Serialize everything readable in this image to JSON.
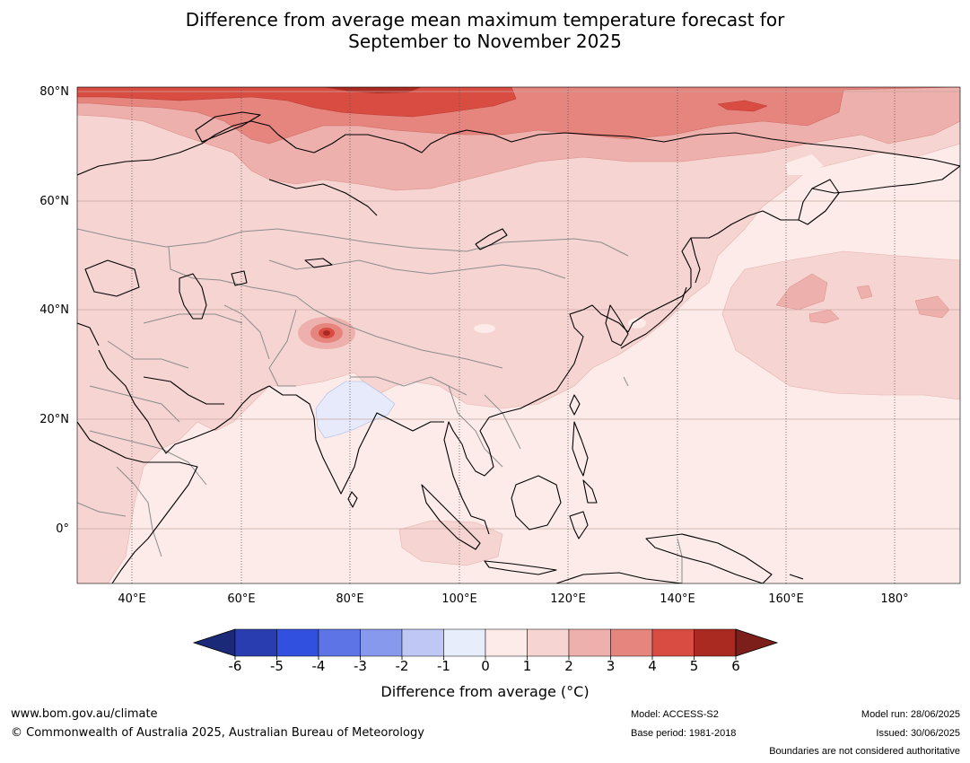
{
  "title_line1": "Difference from average mean maximum temperature forecast for",
  "title_line2": "September to November 2025",
  "map": {
    "lat_labels": [
      "80°N",
      "60°N",
      "40°N",
      "20°N",
      "0°"
    ],
    "lon_labels": [
      "40°E",
      "60°E",
      "80°E",
      "100°E",
      "120°E",
      "140°E",
      "160°E",
      "180°"
    ],
    "lat_range": [
      -10,
      81
    ],
    "lon_range": [
      30,
      192
    ]
  },
  "legend": {
    "ticks": [
      "-6",
      "-5",
      "-4",
      "-3",
      "-2",
      "-1",
      "0",
      "1",
      "2",
      "3",
      "4",
      "5",
      "6"
    ],
    "colors": [
      "#1b2a78",
      "#2a3db0",
      "#3150e0",
      "#5d74e6",
      "#8799ec",
      "#bfc8f4",
      "#e8edfb",
      "#fcebe9",
      "#f6d4d1",
      "#eeb0ac",
      "#e6847e",
      "#d84c42",
      "#aa2a22",
      "#7c1f1a"
    ],
    "title": "Difference from average (°C)"
  },
  "footer": {
    "url": "www.bom.gov.au/climate",
    "copyright": "© Commonwealth of Australia 2025, Australian Bureau of Meteorology",
    "model": "Model: ACCESS-S2",
    "base_period": "Base period: 1981-2018",
    "model_run": "Model run: 28/06/2025",
    "issued": "Issued: 30/06/2025",
    "disclaimer": "Boundaries are not considered authoritative"
  }
}
